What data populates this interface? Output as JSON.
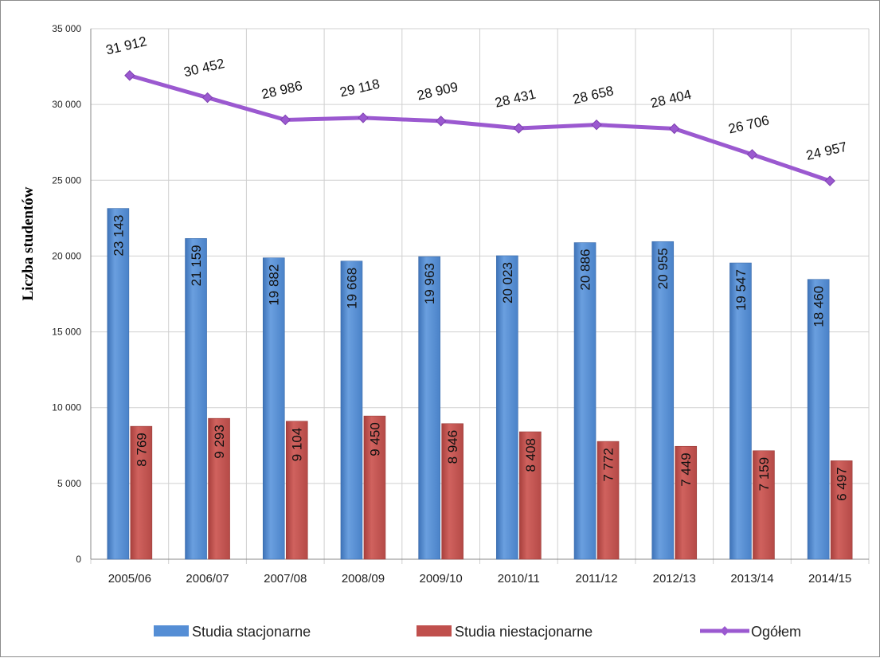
{
  "chart_data": {
    "type": "bar",
    "title": "",
    "xlabel": "",
    "ylabel": "Liczba studentów",
    "ylim": [
      0,
      35000
    ],
    "yticks": [
      0,
      5000,
      10000,
      15000,
      20000,
      25000,
      30000,
      35000
    ],
    "ytick_labels": [
      "0",
      "5 000",
      "10 000",
      "15 000",
      "20 000",
      "25 000",
      "30 000",
      "35 000"
    ],
    "grid": true,
    "legend_position": "bottom",
    "categories": [
      "2005/06",
      "2006/07",
      "2007/08",
      "2008/09",
      "2009/10",
      "2010/11",
      "2011/12",
      "2012/13",
      "2013/14",
      "2014/15"
    ],
    "series": [
      {
        "name": "Studia stacjonarne",
        "kind": "bar",
        "color": "#558ED5",
        "values": [
          23143,
          21159,
          19882,
          19668,
          19963,
          20023,
          20886,
          20955,
          19547,
          18460
        ],
        "labels": [
          "23 143",
          "21 159",
          "19 882",
          "19 668",
          "19 963",
          "20 023",
          "20 886",
          "20 955",
          "19 547",
          "18 460"
        ]
      },
      {
        "name": "Studia niestacjonarne",
        "kind": "bar",
        "color": "#C0504D",
        "values": [
          8769,
          9293,
          9104,
          9450,
          8946,
          8408,
          7772,
          7449,
          7159,
          6497
        ],
        "labels": [
          "8 769",
          "9 293",
          "9 104",
          "9 450",
          "8 946",
          "8 408",
          "7 772",
          "7 449",
          "7 159",
          "6 497"
        ]
      },
      {
        "name": "Ogółem",
        "kind": "line",
        "color": "#9B59D0",
        "values": [
          31912,
          30452,
          28986,
          29118,
          28909,
          28431,
          28658,
          28404,
          26706,
          24957
        ],
        "labels": [
          "31 912",
          "30 452",
          "28 986",
          "29 118",
          "28 909",
          "28 431",
          "28 658",
          "28 404",
          "26 706",
          "24 957"
        ]
      }
    ]
  }
}
